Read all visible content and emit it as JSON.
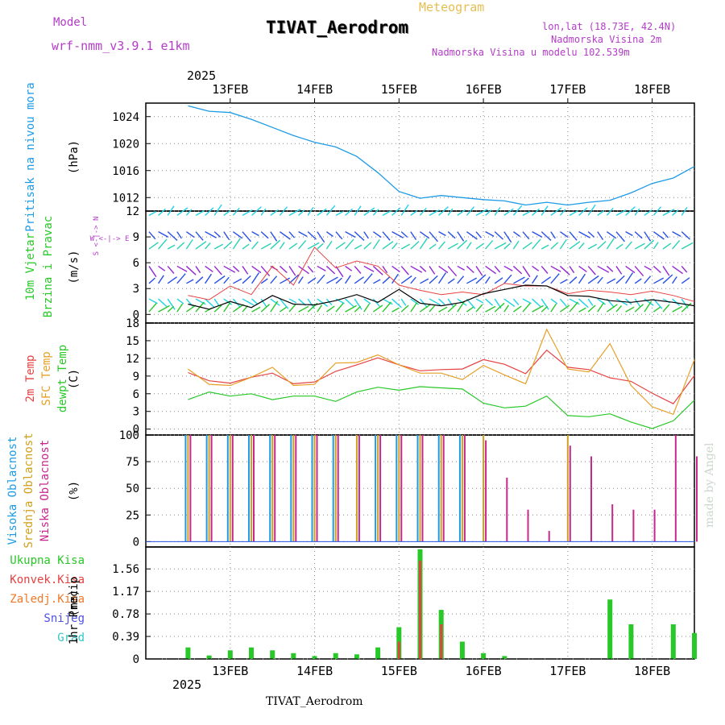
{
  "header": {
    "model_label": "Model",
    "model_name": "wrf-nmm_v3.9.1 e1km",
    "title": "TIVAT_Aerodrom",
    "subtitle": "Meteogram",
    "coords": "lon,lat (18.73E, 42.4N)",
    "elevation": "Nadmorska Visina 2m",
    "model_elevation": "Nadmorska Visina u modelu 102.539m",
    "footer_station": "TIVAT_Aerodrom",
    "watermark": "made by Angel",
    "year": "2025"
  },
  "colors": {
    "pressure": "#1e9be6",
    "temp2m": "#e64141",
    "sfc_temp": "#e6a028",
    "dewpt": "#28c828",
    "high_cloud": "#1e9be6",
    "mid_cloud": "#d2a01e",
    "low_cloud": "#c8288c",
    "total_precip": "#28c828",
    "conv_precip": "#e64141",
    "frozen_precip": "#f07828",
    "snow": "#5050e6",
    "hail": "#32c8c8",
    "title_purple": "#b43cc8"
  },
  "chart_data": [
    {
      "type": "line",
      "name": "pressure",
      "title": "Pritisak na nivou mora",
      "ylabel": "(hPa)",
      "ylim": [
        1010,
        1026
      ],
      "yticks": [
        1012,
        1016,
        1020,
        1024
      ],
      "x": [
        0,
        0.25,
        0.5,
        0.75,
        1,
        1.25,
        1.5,
        1.75,
        2,
        2.25,
        2.5,
        2.75,
        3,
        3.25,
        3.5,
        3.75,
        4,
        4.25,
        4.5,
        4.75,
        5,
        5.25,
        5.5,
        5.75,
        6
      ],
      "values": [
        1025.6,
        1024.8,
        1024.6,
        1023.6,
        1022.4,
        1021.2,
        1020.2,
        1019.5,
        1018.1,
        1015.7,
        1012.9,
        1011.9,
        1012.3,
        1012.0,
        1011.7,
        1011.5,
        1010.9,
        1011.3,
        1010.9,
        1011.3,
        1011.6,
        1012.7,
        1014.1,
        1014.9,
        1016.6
      ]
    },
    {
      "type": "line",
      "name": "wind",
      "title": "10m Vjetar Brzina i Pravac",
      "ylabel": "(m/s)",
      "ylim": [
        -1,
        12
      ],
      "yticks": [
        0,
        3,
        6,
        9,
        12
      ],
      "compass": "N <-|-> S, W <-|-> E",
      "x": [
        0,
        0.25,
        0.5,
        0.75,
        1,
        1.25,
        1.5,
        1.75,
        2,
        2.25,
        2.5,
        2.75,
        3,
        3.25,
        3.5,
        3.75,
        4,
        4.25,
        4.5,
        4.75,
        5,
        5.25,
        5.5,
        5.75,
        6
      ],
      "speed": [
        1.2,
        0.6,
        1.5,
        0.8,
        2.2,
        1.2,
        1.1,
        1.6,
        2.3,
        1.4,
        2.9,
        1.3,
        1.0,
        1.4,
        2.4,
        2.9,
        3.4,
        3.3,
        2.2,
        2.1,
        1.6,
        1.4,
        1.7,
        1.4,
        1.0
      ],
      "gust": [
        2.2,
        1.7,
        3.3,
        2.3,
        5.6,
        3.4,
        7.8,
        5.4,
        6.2,
        5.6,
        3.4,
        2.8,
        2.3,
        2.6,
        2.3,
        3.6,
        3.3,
        3.3,
        2.4,
        2.8,
        2.6,
        2.3,
        2.7,
        2.2,
        1.5
      ]
    },
    {
      "type": "line",
      "name": "temperature",
      "title": "2m Temp, SFC Temp, dewpt Temp",
      "ylabel": "(C)",
      "ylim": [
        -1,
        18
      ],
      "yticks": [
        0,
        3,
        6,
        9,
        12,
        15,
        18
      ],
      "x": [
        0,
        0.25,
        0.5,
        0.75,
        1,
        1.25,
        1.5,
        1.75,
        2,
        2.25,
        2.5,
        2.75,
        3,
        3.25,
        3.5,
        3.75,
        4,
        4.25,
        4.5,
        4.75,
        5,
        5.25,
        5.5,
        5.75,
        6
      ],
      "series": [
        {
          "name": "2m Temp",
          "values": [
            9.6,
            8.2,
            7.8,
            8.8,
            9.5,
            7.7,
            8.0,
            9.8,
            10.9,
            12.1,
            10.9,
            9.9,
            10.1,
            10.2,
            11.8,
            11.0,
            9.4,
            13.4,
            10.5,
            10.1,
            8.7,
            8.1,
            6.1,
            4.3,
            9.1
          ]
        },
        {
          "name": "SFC Temp",
          "values": [
            10.2,
            7.6,
            7.4,
            8.8,
            10.5,
            7.4,
            7.6,
            11.2,
            11.3,
            12.6,
            10.9,
            9.5,
            9.5,
            8.4,
            10.8,
            9.2,
            7.7,
            16.9,
            10.2,
            9.7,
            14.5,
            7.4,
            3.8,
            2.5,
            11.8
          ]
        },
        {
          "name": "dewpt Temp",
          "values": [
            5.0,
            6.3,
            5.6,
            6.0,
            5.0,
            5.6,
            5.6,
            4.7,
            6.3,
            7.1,
            6.6,
            7.2,
            7.0,
            6.8,
            4.4,
            3.6,
            3.9,
            5.6,
            2.3,
            2.1,
            2.6,
            1.2,
            0.1,
            1.4,
            4.9
          ]
        }
      ]
    },
    {
      "type": "bar",
      "name": "cloud",
      "title": "Visoka Oblacnost, Srednja Oblacnost, Niska Oblacnost",
      "ylabel": "(%)",
      "ylim": [
        -5,
        100
      ],
      "yticks": [
        0,
        25,
        50,
        75,
        100
      ],
      "x": [
        0,
        0.25,
        0.5,
        0.75,
        1,
        1.25,
        1.5,
        1.75,
        2,
        2.25,
        2.5,
        2.75,
        3,
        3.25,
        3.5,
        3.75,
        4,
        4.25,
        4.5,
        4.75,
        5,
        5.25,
        5.5,
        5.75,
        6
      ],
      "series": [
        {
          "name": "Visoka Oblacnost",
          "values": [
            100,
            100,
            100,
            100,
            100,
            100,
            100,
            100,
            0,
            100,
            100,
            100,
            100,
            100,
            0,
            0,
            0,
            0,
            0,
            0,
            0,
            0,
            0,
            0,
            0
          ]
        },
        {
          "name": "Srednja Oblacnost",
          "values": [
            100,
            100,
            100,
            100,
            100,
            100,
            100,
            100,
            100,
            100,
            100,
            100,
            100,
            100,
            100,
            0,
            0,
            0,
            100,
            0,
            0,
            0,
            0,
            0,
            0
          ]
        },
        {
          "name": "Niska Oblacnost",
          "values": [
            100,
            100,
            100,
            100,
            100,
            100,
            100,
            100,
            100,
            100,
            100,
            100,
            100,
            100,
            95,
            60,
            30,
            10,
            90,
            80,
            35,
            30,
            30,
            100,
            80
          ]
        }
      ]
    },
    {
      "type": "bar",
      "name": "precip",
      "title": "1hr Precip",
      "ylabel": "(mm)",
      "ylim": [
        0,
        1.94
      ],
      "yticks": [
        0,
        0.39,
        0.78,
        1.17,
        1.56
      ],
      "legend": [
        "Ukupna Kisa",
        "Konvek.Kisa",
        "Zaledj.Kisa",
        "Snijeg",
        "Grad"
      ],
      "x": [
        0,
        0.25,
        0.5,
        0.75,
        1,
        1.25,
        1.5,
        1.75,
        2,
        2.25,
        2.5,
        2.75,
        3,
        3.25,
        3.5,
        3.75,
        4,
        4.25,
        4.5,
        4.75,
        5,
        5.25,
        5.5,
        5.75,
        6
      ],
      "series": [
        {
          "name": "Ukupna Kisa",
          "values": [
            0.2,
            0.06,
            0.15,
            0.2,
            0.15,
            0.1,
            0.05,
            0.1,
            0.08,
            0.2,
            0.55,
            1.9,
            0.85,
            0.3,
            0.1,
            0.05,
            0,
            0,
            0,
            0,
            1.03,
            0.6,
            0,
            0.6,
            0.45
          ]
        },
        {
          "name": "Konvek.Kisa",
          "values": [
            0,
            0,
            0,
            0,
            0,
            0,
            0,
            0,
            0,
            0,
            0.3,
            1.7,
            0.6,
            0,
            0,
            0,
            0,
            0,
            0,
            0,
            0,
            0,
            0,
            0,
            0
          ]
        }
      ]
    }
  ],
  "time_axis": {
    "labels": [
      "13FEB",
      "14FEB",
      "15FEB",
      "16FEB",
      "17FEB",
      "18FEB"
    ],
    "positions": [
      0.5,
      1.5,
      2.5,
      3.5,
      4.5,
      5.5
    ]
  },
  "legends": {
    "pressure": [
      "Pritisak na nivou mora"
    ],
    "wind": [
      "10m Vjetar",
      "Brzina i Pravac"
    ],
    "temp": [
      "2m Temp",
      "SFC Temp",
      "dewpt Temp"
    ],
    "cloud": [
      "Visoka Oblacnost",
      "Srednja Oblacnost",
      "Niska Oblacnost"
    ],
    "precip": [
      "Ukupna Kisa",
      "Konvek.Kisa",
      "Zaledj.Kisa",
      "Snijeg",
      "Grad"
    ]
  }
}
